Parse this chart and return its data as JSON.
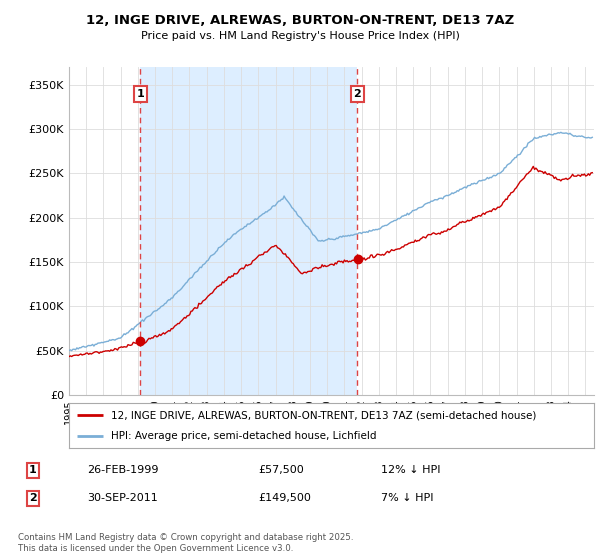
{
  "title": "12, INGE DRIVE, ALREWAS, BURTON-ON-TRENT, DE13 7AZ",
  "subtitle": "Price paid vs. HM Land Registry's House Price Index (HPI)",
  "ylabel_ticks": [
    "£0",
    "£50K",
    "£100K",
    "£150K",
    "£200K",
    "£250K",
    "£300K",
    "£350K"
  ],
  "ytick_vals": [
    0,
    50000,
    100000,
    150000,
    200000,
    250000,
    300000,
    350000
  ],
  "ylim": [
    0,
    370000
  ],
  "xlim_start": 1995.0,
  "xlim_end": 2025.5,
  "legend_line1": "12, INGE DRIVE, ALREWAS, BURTON-ON-TRENT, DE13 7AZ (semi-detached house)",
  "legend_line2": "HPI: Average price, semi-detached house, Lichfield",
  "marker1_year": 1999.15,
  "marker1_price": 57500,
  "marker2_year": 2011.75,
  "marker2_price": 149500,
  "table_row1": [
    "1",
    "26-FEB-1999",
    "£57,500",
    "12% ↓ HPI"
  ],
  "table_row2": [
    "2",
    "30-SEP-2011",
    "£149,500",
    "7% ↓ HPI"
  ],
  "footnote": "Contains HM Land Registry data © Crown copyright and database right 2025.\nThis data is licensed under the Open Government Licence v3.0.",
  "red_color": "#cc0000",
  "blue_color": "#7aaed6",
  "shade_color": "#ddeeff",
  "grid_color": "#dddddd",
  "bg_color": "#ffffff",
  "vline_color": "#dd4444"
}
